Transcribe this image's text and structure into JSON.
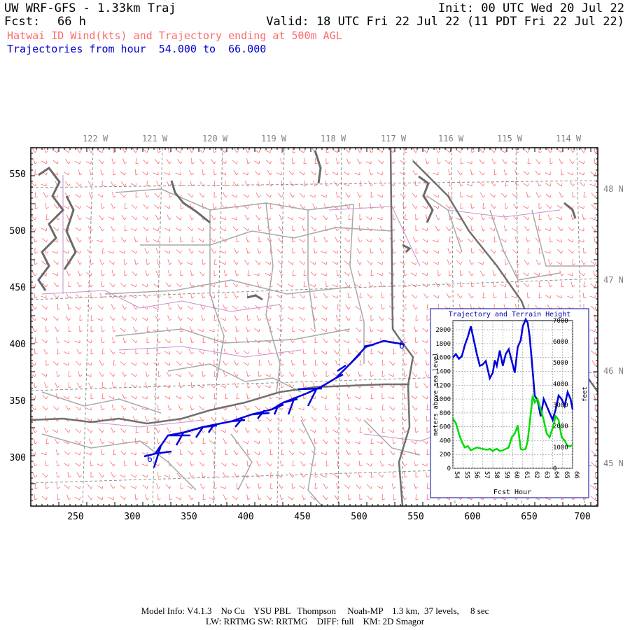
{
  "header": {
    "title": "UW WRF-GFS - 1.33km Traj",
    "init": "Init: 00 UTC Wed 20 Jul 22",
    "fcst_label": "Fcst:",
    "fcst_value": "66 h",
    "valid": "Valid: 18 UTC Fri 22 Jul 22 (11 PDT Fri 22 Jul 22)",
    "subtitle": "Hatwai ID Wind(kts) and Trajectory ending at 500m AGL",
    "traj_range": "Trajectories from hour  54.000 to  66.000"
  },
  "map": {
    "top_lon_labels": [
      "122 W",
      "121 W",
      "120 W",
      "119 W",
      "118 W",
      "117 W",
      "116 W",
      "115 W",
      "114 W"
    ],
    "right_lat_labels": [
      "48 N",
      "47 N",
      "46 N",
      "45 N"
    ],
    "left_y_labels": [
      "550",
      "500",
      "450",
      "400",
      "350",
      "300"
    ],
    "bottom_x_labels": [
      "250",
      "300",
      "350",
      "400",
      "450",
      "500",
      "550",
      "600",
      "650",
      "700"
    ],
    "traj_start_marker": "6",
    "traj_end_marker": "6",
    "colors": {
      "wind": "#ff6a6a",
      "borders": "#a0a0a0",
      "state_lines": "#707070",
      "counties": "#c890c8",
      "trajectory": "#0000dd",
      "water": "#6e6e6e"
    }
  },
  "chart_data": {
    "type": "line",
    "title": "Trajectory and Terrain Height",
    "xlabel": "Fcst Hour",
    "ylabel": "meters above sea level",
    "ylabel_right": "feet",
    "x_ticks": [
      "54",
      "55",
      "56",
      "57",
      "58",
      "59",
      "60",
      "61",
      "62",
      "63",
      "64",
      "65",
      "66"
    ],
    "y_ticks": [
      "0",
      "200",
      "400",
      "600",
      "800",
      "1000",
      "1200",
      "1400",
      "1600",
      "1800",
      "2000"
    ],
    "y2_ticks": [
      "0",
      "1000",
      "2000",
      "3000",
      "4000",
      "5000",
      "6000",
      "7000"
    ],
    "xlim": [
      54,
      66
    ],
    "ylim": [
      0,
      2133
    ],
    "series": [
      {
        "color": "#0000dd",
        "x": [
          54.0,
          54.3,
          54.6,
          54.9,
          55.2,
          55.5,
          55.8,
          56.1,
          56.4,
          56.7,
          57.0,
          57.3,
          57.5,
          57.7,
          58.0,
          58.2,
          58.4,
          58.7,
          59.0,
          59.3,
          59.6,
          59.9,
          60.2,
          60.5,
          60.8,
          61.0,
          61.3,
          61.5,
          61.7,
          62.0,
          62.2,
          62.5,
          62.8,
          63.1,
          63.4,
          63.7,
          64.0,
          64.3,
          64.6,
          64.9,
          65.2,
          65.5,
          65.8,
          66.0
        ],
        "y": [
          1600,
          1650,
          1580,
          1620,
          1780,
          1900,
          2050,
          1850,
          1650,
          1480,
          1500,
          1550,
          1420,
          1300,
          1380,
          1560,
          1480,
          1700,
          1480,
          1650,
          1720,
          1550,
          1380,
          1750,
          1850,
          2050,
          2150,
          2100,
          1900,
          1400,
          1050,
          980,
          750,
          1000,
          900,
          800,
          700,
          850,
          1050,
          1000,
          900,
          1100,
          1000,
          850
        ]
      },
      {
        "color": "#00dd00",
        "x": [
          54.0,
          54.3,
          54.6,
          54.9,
          55.2,
          55.5,
          55.8,
          56.1,
          56.4,
          56.7,
          57.0,
          57.3,
          57.5,
          57.7,
          58.0,
          58.2,
          58.4,
          58.7,
          59.0,
          59.3,
          59.6,
          59.9,
          60.2,
          60.5,
          60.8,
          61.0,
          61.3,
          61.5,
          61.7,
          62.0,
          62.2,
          62.5,
          62.8,
          63.1,
          63.4,
          63.7,
          64.0,
          64.3,
          64.6,
          64.9,
          65.2,
          65.5,
          65.8,
          66.0
        ],
        "y": [
          720,
          650,
          500,
          380,
          300,
          320,
          260,
          280,
          300,
          290,
          280,
          270,
          270,
          280,
          250,
          270,
          280,
          250,
          260,
          280,
          300,
          450,
          500,
          620,
          280,
          270,
          280,
          400,
          650,
          1050,
          950,
          1000,
          850,
          700,
          500,
          450,
          580,
          750,
          700,
          450,
          400,
          320,
          320,
          340
        ]
      }
    ]
  },
  "footer": {
    "line1": "Model Info: V4.1.3    No Cu    YSU PBL   Thompson     Noah-MP    1.3 km,  37 levels,     8 sec",
    "line2": "LW: RRTMG SW: RRTMG    DIFF: full    KM: 2D Smagor"
  }
}
